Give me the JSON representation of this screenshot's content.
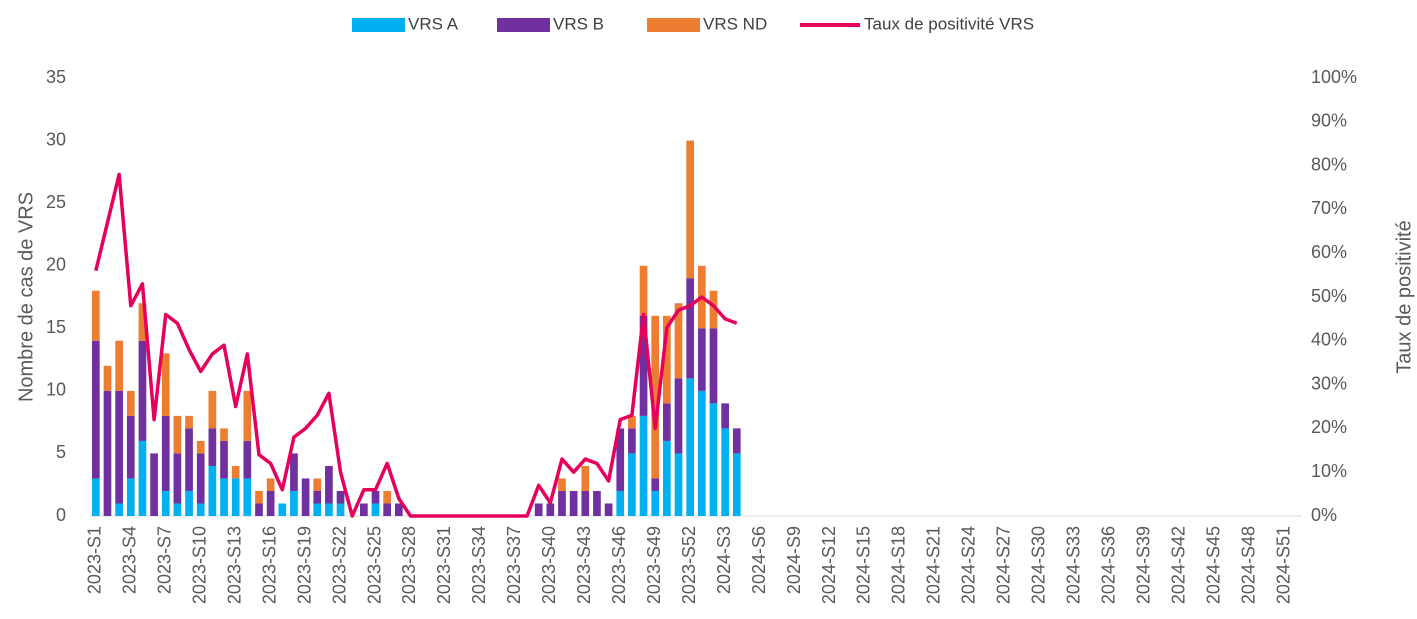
{
  "chart_data": {
    "type": "bar",
    "categories": [
      "2023-S1",
      null,
      null,
      "2023-S4",
      null,
      null,
      "2023-S7",
      null,
      null,
      "2023-S10",
      null,
      null,
      "2023-S13",
      null,
      null,
      "2023-S16",
      null,
      null,
      "2023-S19",
      null,
      null,
      "2023-S22",
      null,
      null,
      "2023-S25",
      null,
      null,
      "2023-S28",
      null,
      null,
      "2023-S31",
      null,
      null,
      "2023-S34",
      null,
      null,
      "2023-S37",
      null,
      null,
      "2023-S40",
      null,
      null,
      "2023-S43",
      null,
      null,
      "2023-S46",
      null,
      null,
      "2023-S49",
      null,
      null,
      "2023-S52",
      null,
      null,
      "2024-S3",
      null,
      null,
      "2024-S6",
      null,
      null,
      "2024-S9",
      null,
      null,
      "2024-S12",
      null,
      null,
      "2024-S15",
      null,
      null,
      "2024-S18",
      null,
      null,
      "2024-S21",
      null,
      null,
      "2024-S24",
      null,
      null,
      "2024-S27",
      null,
      null,
      "2024-S30",
      null,
      null,
      "2024-S33",
      null,
      null,
      "2024-S36",
      null,
      null,
      "2024-S39",
      null,
      null,
      "2024-S42",
      null,
      null,
      "2024-S45",
      null,
      null,
      "2024-S48",
      null,
      null,
      "2024-S51",
      null
    ],
    "series": [
      {
        "name": "VRS A",
        "type": "bar",
        "color": "#00b0f0",
        "values": [
          3,
          0,
          1,
          3,
          6,
          0,
          2,
          1,
          2,
          1,
          4,
          3,
          3,
          3,
          0,
          0,
          1,
          2,
          0,
          1,
          1,
          1,
          0,
          0,
          1,
          0,
          0,
          0,
          0,
          0,
          0,
          0,
          0,
          0,
          0,
          0,
          0,
          0,
          0,
          0,
          0,
          0,
          0,
          0,
          0,
          2,
          5,
          8,
          2,
          6,
          5,
          11,
          10,
          9,
          7,
          5,
          null,
          null,
          null,
          null,
          null,
          null,
          null,
          null,
          null,
          null,
          null,
          null,
          null,
          null,
          null,
          null,
          null,
          null,
          null,
          null,
          null,
          null,
          null,
          null,
          null,
          null,
          null,
          null,
          null,
          null,
          null,
          null,
          null,
          null,
          null,
          null,
          null,
          null,
          null,
          null,
          null,
          null,
          null,
          null,
          null,
          null,
          null,
          null
        ]
      },
      {
        "name": "VRS B",
        "type": "bar",
        "color": "#7030a0",
        "values": [
          11,
          10,
          9,
          5,
          8,
          5,
          6,
          4,
          5,
          4,
          3,
          3,
          0,
          3,
          1,
          2,
          0,
          3,
          3,
          1,
          3,
          1,
          0,
          1,
          1,
          1,
          1,
          0,
          0,
          0,
          0,
          0,
          0,
          0,
          0,
          0,
          0,
          0,
          1,
          1,
          2,
          2,
          2,
          2,
          1,
          5,
          2,
          8,
          1,
          3,
          6,
          8,
          5,
          6,
          2,
          2,
          null,
          null,
          null,
          null,
          null,
          null,
          null,
          null,
          null,
          null,
          null,
          null,
          null,
          null,
          null,
          null,
          null,
          null,
          null,
          null,
          null,
          null,
          null,
          null,
          null,
          null,
          null,
          null,
          null,
          null,
          null,
          null,
          null,
          null,
          null,
          null,
          null,
          null,
          null,
          null,
          null,
          null,
          null,
          null,
          null,
          null,
          null,
          null
        ]
      },
      {
        "name": "VRS ND",
        "type": "bar",
        "color": "#ed7d31",
        "values": [
          4,
          2,
          4,
          2,
          3,
          0,
          5,
          3,
          1,
          1,
          3,
          1,
          1,
          4,
          1,
          1,
          0,
          0,
          0,
          1,
          0,
          0,
          0,
          0,
          0,
          1,
          0,
          0,
          0,
          0,
          0,
          0,
          0,
          0,
          0,
          0,
          0,
          0,
          0,
          0,
          1,
          0,
          2,
          0,
          0,
          0,
          1,
          4,
          13,
          7,
          6,
          11,
          5,
          3,
          0,
          0,
          null,
          null,
          null,
          null,
          null,
          null,
          null,
          null,
          null,
          null,
          null,
          null,
          null,
          null,
          null,
          null,
          null,
          null,
          null,
          null,
          null,
          null,
          null,
          null,
          null,
          null,
          null,
          null,
          null,
          null,
          null,
          null,
          null,
          null,
          null,
          null,
          null,
          null,
          null,
          null,
          null,
          null,
          null,
          null,
          null,
          null,
          null,
          null
        ]
      },
      {
        "name": "Taux de positivité VRS",
        "type": "line",
        "axis": "y2",
        "color": "#e6005c",
        "values": [
          56,
          67,
          78,
          48,
          53,
          22,
          46,
          44,
          38,
          33,
          37,
          39,
          25,
          37,
          14,
          12,
          6,
          18,
          20,
          23,
          28,
          10,
          0,
          6,
          6,
          12,
          4,
          0,
          0,
          0,
          0,
          0,
          0,
          0,
          0,
          0,
          0,
          0,
          7,
          3,
          13,
          10,
          13,
          12,
          8,
          22,
          23,
          46,
          20,
          43,
          47,
          48,
          50,
          48,
          45,
          44,
          null,
          null,
          null,
          null,
          null,
          null,
          null,
          null,
          null,
          null,
          null,
          null,
          null,
          null,
          null,
          null,
          null,
          null,
          null,
          null,
          null,
          null,
          null,
          null,
          null,
          null,
          null,
          null,
          null,
          null,
          null,
          null,
          null,
          null,
          null,
          null,
          null,
          null,
          null,
          null,
          null,
          null,
          null,
          null,
          null,
          null,
          null,
          null
        ]
      }
    ],
    "y_label": "Nombre de cas de VRS",
    "y2_label": "Taux de positivité",
    "ylim": [
      0,
      35
    ],
    "yticks": [
      0,
      5,
      10,
      15,
      20,
      25,
      30,
      35
    ],
    "y2lim": [
      0,
      100
    ],
    "y2ticks": [
      {
        "value": 0,
        "label": "0%"
      },
      {
        "value": 10,
        "label": "10%"
      },
      {
        "value": 20,
        "label": "20%"
      },
      {
        "value": 30,
        "label": "30%"
      },
      {
        "value": 40,
        "label": "40%"
      },
      {
        "value": 50,
        "label": "50%"
      },
      {
        "value": 60,
        "label": "60%"
      },
      {
        "value": 70,
        "label": "70%"
      },
      {
        "value": 80,
        "label": "80%"
      },
      {
        "value": 90,
        "label": "90%"
      },
      {
        "value": 100,
        "label": "100%"
      }
    ],
    "stacked": true,
    "grid": false,
    "legend": "top"
  }
}
